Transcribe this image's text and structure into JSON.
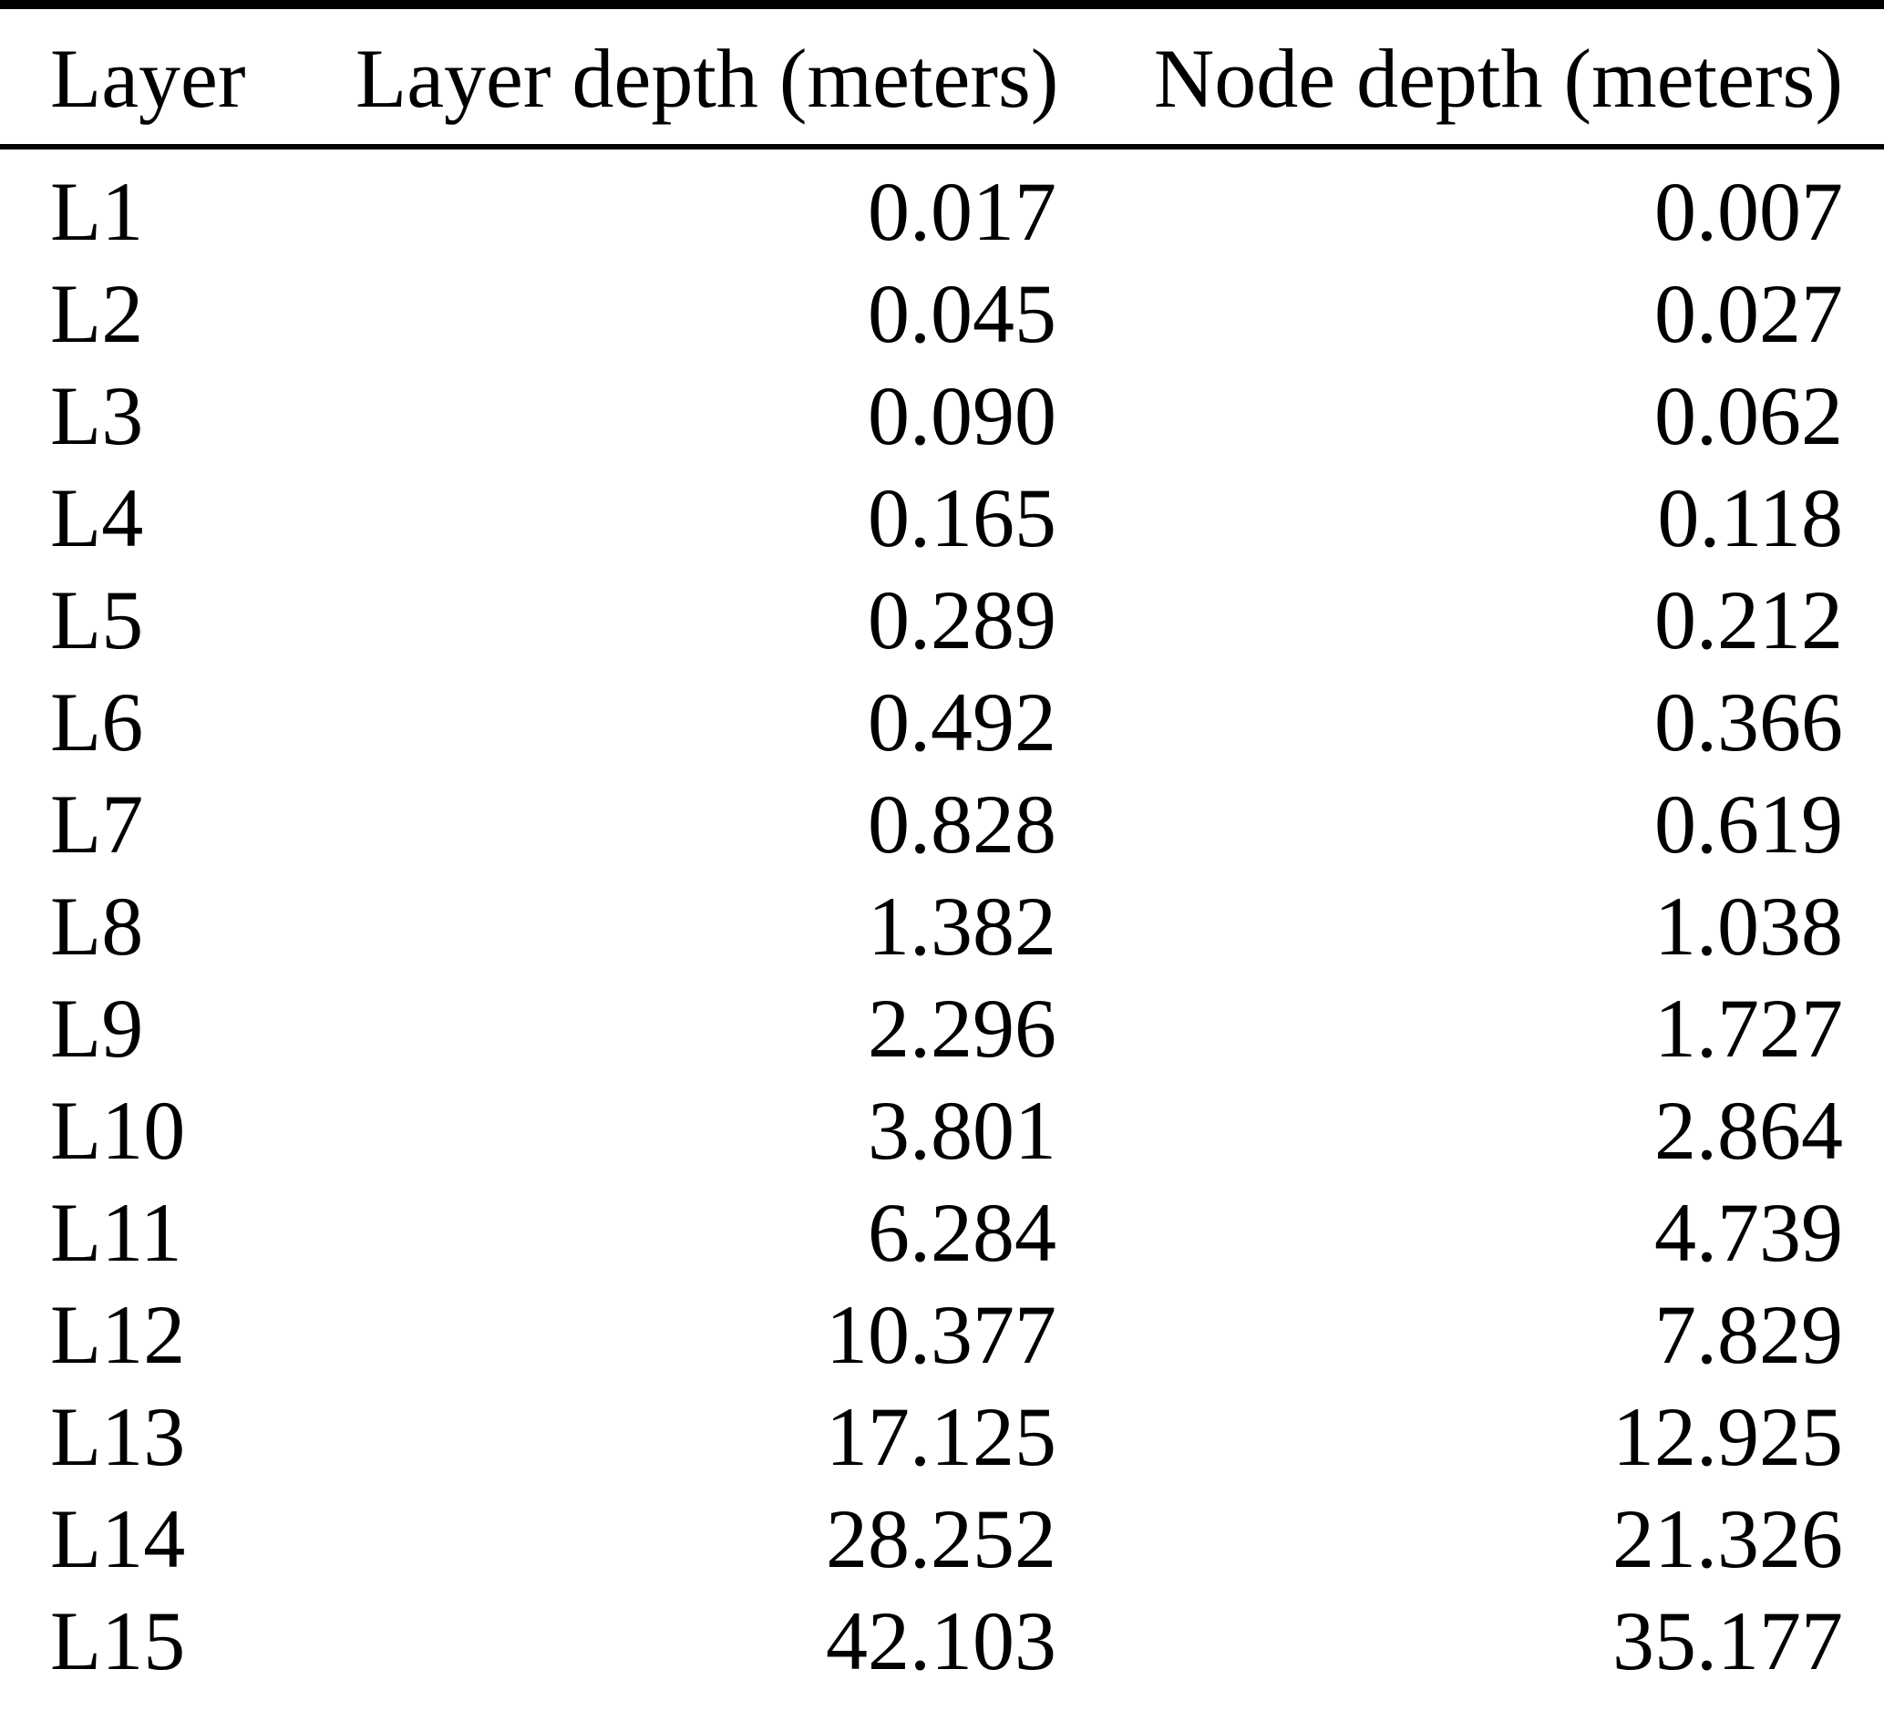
{
  "page": {
    "background_color": "#ffffff",
    "text_color": "#000000",
    "rule_color": "#000000"
  },
  "table": {
    "headers": {
      "layer": "Layer",
      "layer_depth": "Layer depth (meters)",
      "node_depth": "Node depth (meters)"
    },
    "rows": [
      {
        "layer": "L1",
        "layer_depth": "0.017",
        "node_depth": "0.007"
      },
      {
        "layer": "L2",
        "layer_depth": "0.045",
        "node_depth": "0.027"
      },
      {
        "layer": "L3",
        "layer_depth": "0.090",
        "node_depth": "0.062"
      },
      {
        "layer": "L4",
        "layer_depth": "0.165",
        "node_depth": "0.118"
      },
      {
        "layer": "L5",
        "layer_depth": "0.289",
        "node_depth": "0.212"
      },
      {
        "layer": "L6",
        "layer_depth": "0.492",
        "node_depth": "0.366"
      },
      {
        "layer": "L7",
        "layer_depth": "0.828",
        "node_depth": "0.619"
      },
      {
        "layer": "L8",
        "layer_depth": "1.382",
        "node_depth": "1.038"
      },
      {
        "layer": "L9",
        "layer_depth": "2.296",
        "node_depth": "1.727"
      },
      {
        "layer": "L10",
        "layer_depth": "3.801",
        "node_depth": "2.864"
      },
      {
        "layer": "L11",
        "layer_depth": "6.284",
        "node_depth": "4.739"
      },
      {
        "layer": "L12",
        "layer_depth": "10.377",
        "node_depth": "7.829"
      },
      {
        "layer": "L13",
        "layer_depth": "17.125",
        "node_depth": "12.925"
      },
      {
        "layer": "L14",
        "layer_depth": "28.252",
        "node_depth": "21.326"
      },
      {
        "layer": "L15",
        "layer_depth": "42.103",
        "node_depth": "35.177"
      }
    ]
  }
}
